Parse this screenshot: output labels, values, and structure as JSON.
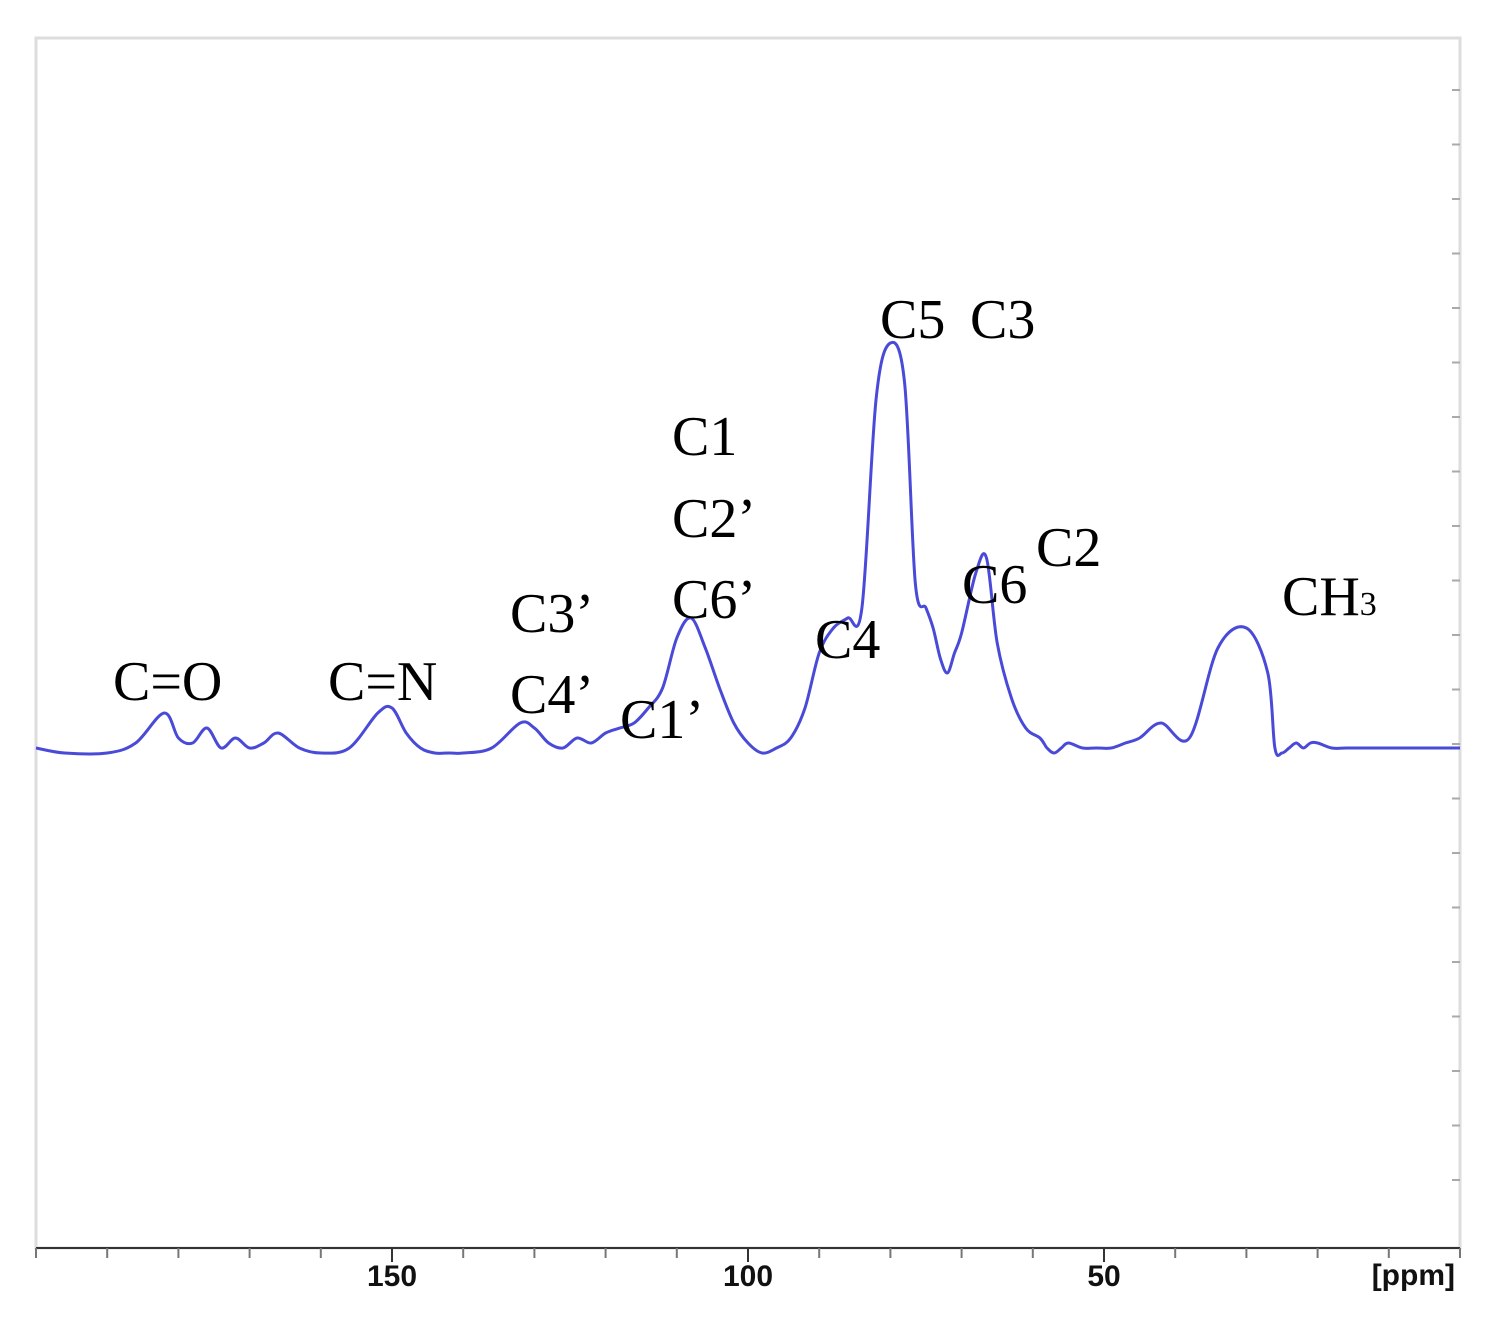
{
  "chart_data": {
    "type": "line",
    "title": "",
    "xlabel": "[ppm]",
    "ylabel": "",
    "xlim": [
      200,
      0
    ],
    "x_reversed": true,
    "y_units": "relative intensity",
    "ylim": [
      -1.0,
      1.42
    ],
    "grid": false,
    "colors": {
      "spectrum": "#4a4ad8",
      "frame": "#dddddd",
      "axis": "#333333"
    },
    "x_ticks": [
      {
        "value": 150,
        "label": "150"
      },
      {
        "value": 100,
        "label": "100"
      },
      {
        "value": 50,
        "label": "50"
      }
    ],
    "minor_tick_step": 10,
    "series": [
      {
        "values_x": [
          200,
          196,
          190,
          186,
          182,
          180,
          178,
          176,
          174,
          172,
          170,
          168,
          166,
          163,
          160,
          156,
          152,
          150,
          148,
          146,
          144,
          142,
          140,
          136,
          132,
          130,
          128,
          126,
          124,
          122,
          120,
          118,
          116,
          114,
          112,
          110,
          108,
          106,
          104,
          102,
          100,
          98,
          96,
          94,
          92,
          90,
          88,
          86,
          84,
          82,
          80,
          78,
          76.5,
          75,
          74,
          73,
          72,
          71,
          70,
          68,
          66.5,
          65,
          63,
          61,
          59,
          58,
          57,
          56,
          55,
          53,
          51,
          49,
          47,
          45,
          42,
          38,
          34,
          30,
          27,
          26,
          25,
          24,
          23,
          22,
          21,
          20,
          18,
          16,
          12,
          8,
          4,
          0
        ],
        "values_y": [
          0.0,
          -0.01,
          -0.01,
          0.01,
          0.07,
          0.02,
          0.01,
          0.04,
          0.0,
          0.02,
          0.0,
          0.01,
          0.03,
          0.0,
          -0.01,
          0.0,
          0.07,
          0.08,
          0.03,
          0.0,
          -0.01,
          -0.01,
          -0.01,
          0.0,
          0.05,
          0.04,
          0.01,
          0.0,
          0.02,
          0.01,
          0.03,
          0.04,
          0.05,
          0.08,
          0.12,
          0.22,
          0.26,
          0.2,
          0.12,
          0.05,
          0.01,
          -0.01,
          0.0,
          0.02,
          0.08,
          0.19,
          0.24,
          0.26,
          0.28,
          0.7,
          0.81,
          0.73,
          0.33,
          0.28,
          0.24,
          0.18,
          0.15,
          0.19,
          0.23,
          0.35,
          0.38,
          0.21,
          0.1,
          0.04,
          0.02,
          0.0,
          -0.01,
          0.0,
          0.01,
          0.0,
          0.0,
          0.0,
          0.01,
          0.02,
          0.05,
          0.02,
          0.2,
          0.24,
          0.15,
          0.0,
          -0.01,
          0.0,
          0.01,
          0.0,
          0.01,
          0.01,
          0.0,
          0.0,
          0.0,
          0.0,
          0.0,
          0.0
        ]
      }
    ],
    "annotations": [
      {
        "text": "C=O",
        "sub": ""
      },
      {
        "text": "C=N",
        "sub": ""
      },
      {
        "text": "C3’",
        "sub": ""
      },
      {
        "text": "C4’",
        "sub": ""
      },
      {
        "text": "C1’",
        "sub": ""
      },
      {
        "text": "C1",
        "sub": ""
      },
      {
        "text": "C2’",
        "sub": ""
      },
      {
        "text": "C6’",
        "sub": ""
      },
      {
        "text": "C4",
        "sub": ""
      },
      {
        "text": "C5",
        "sub": ""
      },
      {
        "text": "C3",
        "sub": ""
      },
      {
        "text": "C6",
        "sub": ""
      },
      {
        "text": "C2",
        "sub": ""
      },
      {
        "text": "CH",
        "sub": "3"
      }
    ]
  }
}
